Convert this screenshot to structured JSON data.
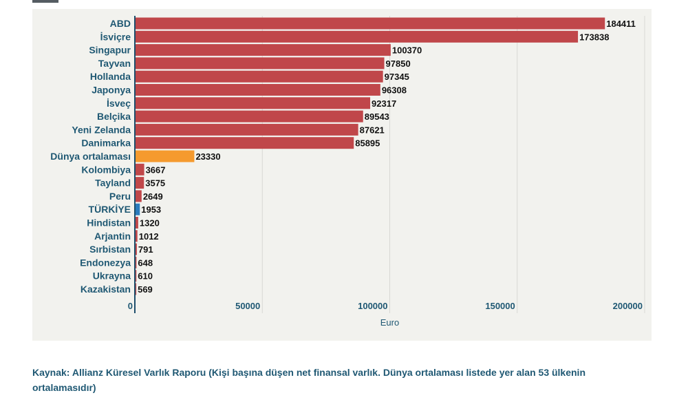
{
  "caption": "Kaynak: Allianz Küresel Varlık Raporu (Kişi başına düşen net finansal varlık. Dünya ortalaması listede yer alan 53 ülkenin ortalamasıdır)",
  "chart_data": {
    "type": "bar",
    "orientation": "horizontal",
    "title": "",
    "xlabel": "Euro",
    "ylabel": "",
    "xlim": [
      0,
      200000
    ],
    "xticks": [
      0,
      50000,
      100000,
      150000,
      200000
    ],
    "grid": true,
    "categories": [
      "ABD",
      "İsviçre",
      "Singapur",
      "Tayvan",
      "Hollanda",
      "Japonya",
      "İsveç",
      "Belçika",
      "Yeni Zelanda",
      "Danimarka",
      "Dünya ortalaması",
      "Kolombiya",
      "Tayland",
      "Peru",
      "TÜRKİYE",
      "Hindistan",
      "Arjantin",
      "Sırbistan",
      "Endonezya",
      "Ukrayna",
      "Kazakistan"
    ],
    "values": [
      184411,
      173838,
      100370,
      97850,
      97345,
      96308,
      92317,
      89543,
      87621,
      85895,
      23330,
      3667,
      3575,
      2649,
      1953,
      1320,
      1012,
      791,
      648,
      610,
      569
    ],
    "colors": {
      "default": "#c0474a",
      "highlight_world": "#f59a2e",
      "highlight_turkey": "#2b7bbd",
      "axis": "#1d4e6b",
      "label": "#1f5873",
      "grid": "#d8d8d4"
    },
    "highlight": {
      "Dünya ortalaması": "highlight_world",
      "TÜRKİYE": "highlight_turkey"
    }
  }
}
